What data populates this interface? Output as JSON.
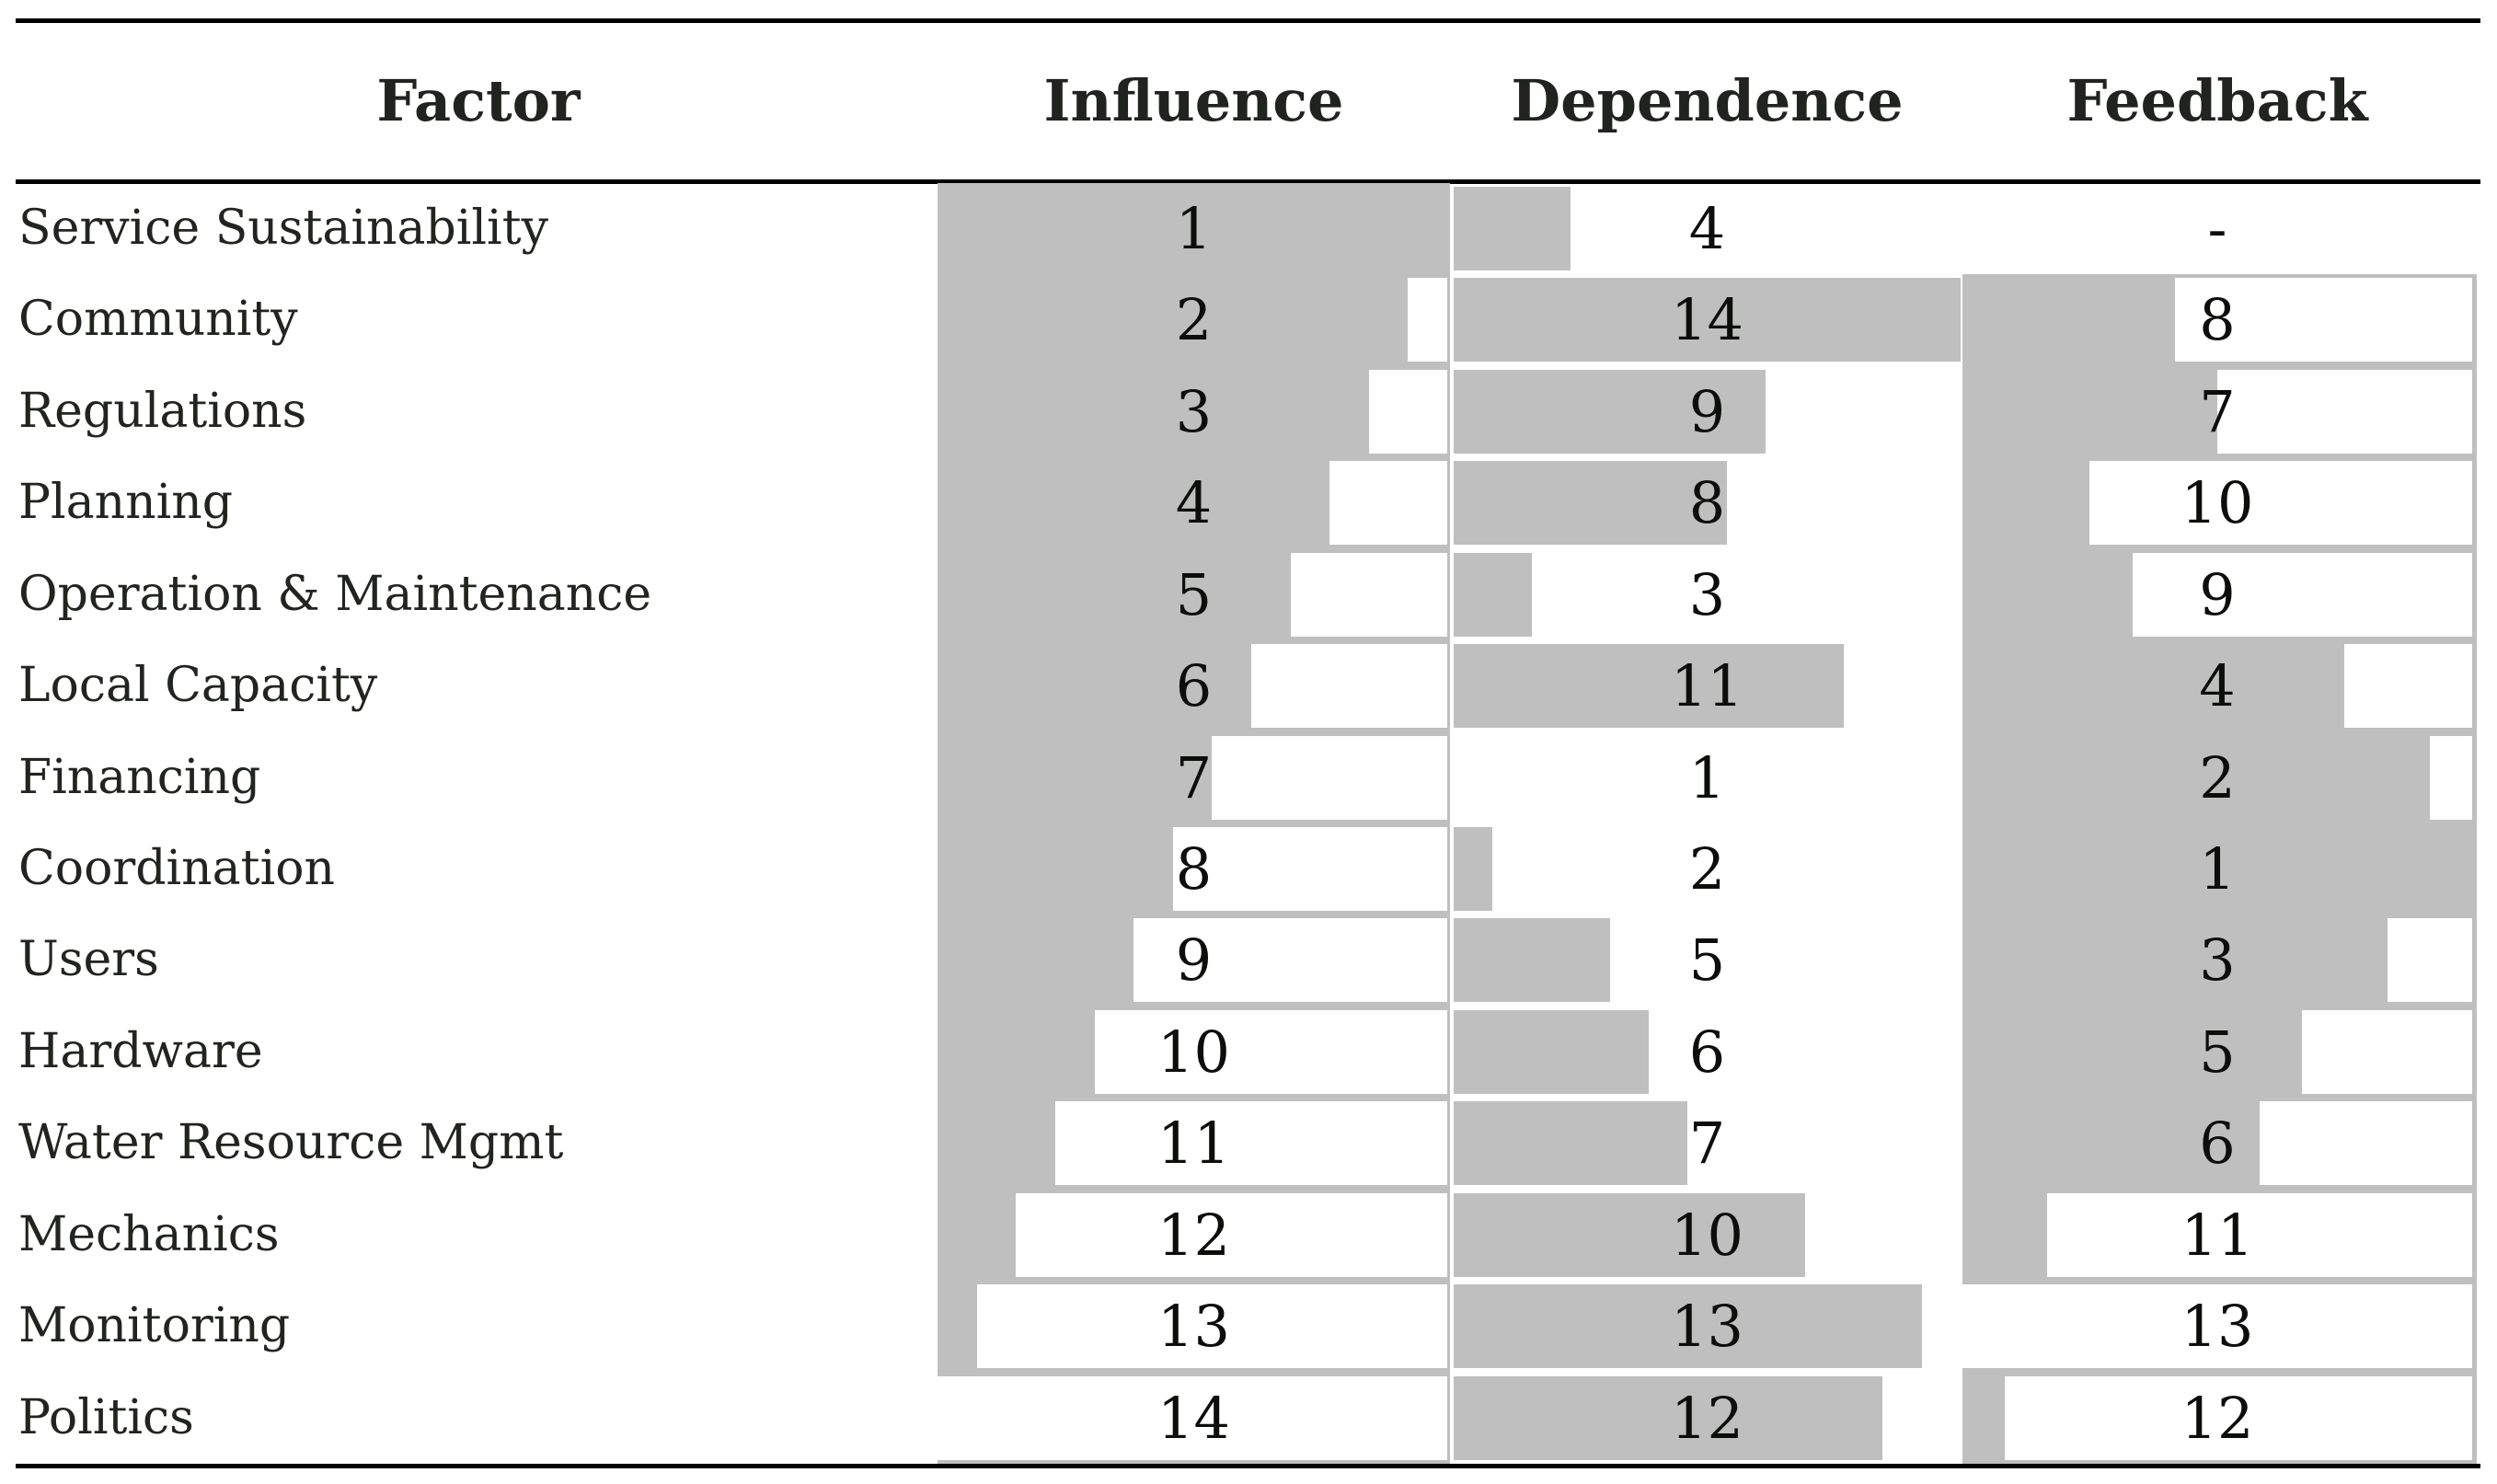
{
  "table": {
    "headers": {
      "factor": "Factor",
      "influence": "Influence",
      "dependence": "Dependence",
      "feedback": "Feedback"
    },
    "no_value_symbol": "-",
    "rows": [
      {
        "factor": "Service Sustainability",
        "influence": 1,
        "dependence": 4,
        "feedback": null
      },
      {
        "factor": "Community",
        "influence": 2,
        "dependence": 14,
        "feedback": 8
      },
      {
        "factor": "Regulations",
        "influence": 3,
        "dependence": 9,
        "feedback": 7
      },
      {
        "factor": "Planning",
        "influence": 4,
        "dependence": 8,
        "feedback": 10
      },
      {
        "factor": "Operation & Maintenance",
        "influence": 5,
        "dependence": 3,
        "feedback": 9
      },
      {
        "factor": "Local Capacity",
        "influence": 6,
        "dependence": 11,
        "feedback": 4
      },
      {
        "factor": "Financing",
        "influence": 7,
        "dependence": 1,
        "feedback": 2
      },
      {
        "factor": "Coordination",
        "influence": 8,
        "dependence": 2,
        "feedback": 1
      },
      {
        "factor": "Users",
        "influence": 9,
        "dependence": 5,
        "feedback": 3
      },
      {
        "factor": "Hardware",
        "influence": 10,
        "dependence": 6,
        "feedback": 5
      },
      {
        "factor": "Water Resource Mgmt",
        "influence": 11,
        "dependence": 7,
        "feedback": 6
      },
      {
        "factor": "Mechanics",
        "influence": 12,
        "dependence": 10,
        "feedback": 11
      },
      {
        "factor": "Monitoring",
        "influence": 13,
        "dependence": 13,
        "feedback": 13
      },
      {
        "factor": "Politics",
        "influence": 14,
        "dependence": 12,
        "feedback": 12
      }
    ]
  },
  "chart_data": {
    "type": "table",
    "title": "Factor ranking table with in-cell bar shading",
    "columns": [
      "Factor",
      "Influence",
      "Dependence",
      "Feedback"
    ],
    "rows": [
      [
        "Service Sustainability",
        1,
        4,
        null
      ],
      [
        "Community",
        2,
        14,
        8
      ],
      [
        "Regulations",
        3,
        9,
        7
      ],
      [
        "Planning",
        4,
        8,
        10
      ],
      [
        "Operation & Maintenance",
        5,
        3,
        9
      ],
      [
        "Local Capacity",
        6,
        11,
        4
      ],
      [
        "Financing",
        7,
        1,
        2
      ],
      [
        "Coordination",
        8,
        2,
        1
      ],
      [
        "Users",
        9,
        5,
        3
      ],
      [
        "Hardware",
        10,
        6,
        5
      ],
      [
        "Water Resource Mgmt",
        11,
        7,
        6
      ],
      [
        "Mechanics",
        12,
        10,
        11
      ],
      [
        "Monitoring",
        13,
        13,
        13
      ],
      [
        "Politics",
        14,
        12,
        12
      ]
    ],
    "bar_encoding": {
      "influence": "gray background column; white box anchored right grows with rank: gray length = (14 - rank)/13 of column width",
      "dependence": "white background; left-anchored gray bar length = (rank - 1)/13 of column width",
      "feedback": "gray background column (rows 2-14); white box anchored right grows with rank: gray length = (13 - rank)/12 of column width; '-' means no rank / no bar"
    },
    "value_ranges": {
      "influence": [
        1,
        14
      ],
      "dependence": [
        1,
        14
      ],
      "feedback": [
        1,
        13
      ]
    },
    "legend_position": "none",
    "grid": false
  },
  "colors": {
    "bar_gray": "#bfbfbf",
    "background": "#ffffff",
    "rule_black": "#000000",
    "text": "#21241f"
  }
}
